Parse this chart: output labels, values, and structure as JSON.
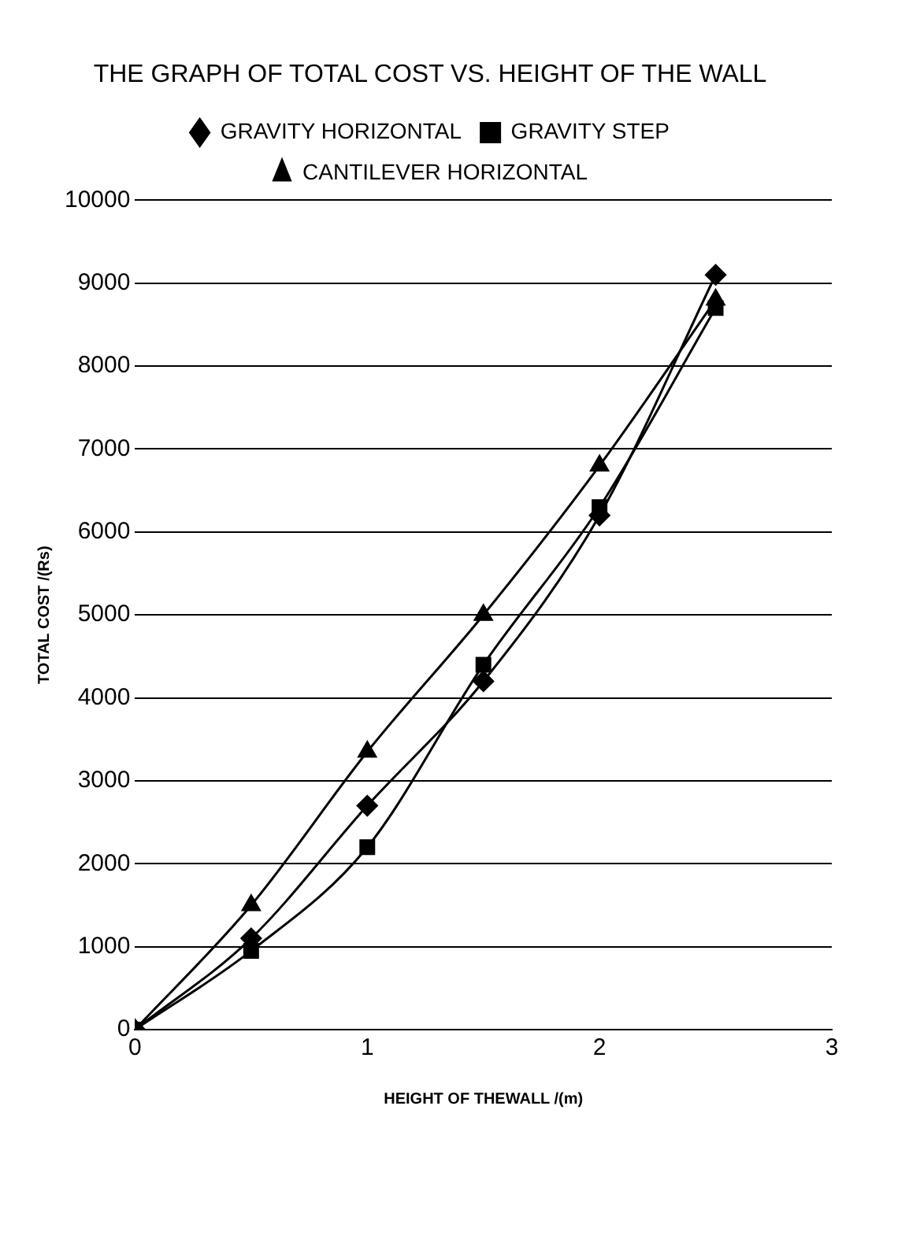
{
  "chart_data": {
    "type": "line",
    "title": "THE GRAPH OF TOTAL COST VS. HEIGHT OF THE WALL",
    "xlabel": "HEIGHT OF THEWALL /(m)",
    "ylabel": "TOTAL COST /(Rs)",
    "x": [
      0,
      0.5,
      1,
      1.5,
      2,
      2.5
    ],
    "series": [
      {
        "name": "GRAVITY HORIZONTAL",
        "color": "#000000",
        "marker": "diamond",
        "values": [
          0,
          1100,
          2700,
          4200,
          6200,
          9100
        ]
      },
      {
        "name": "GRAVITY STEP",
        "color": "#000000",
        "marker": "square",
        "values": [
          0,
          950,
          2200,
          4400,
          6300,
          8700
        ]
      },
      {
        "name": "CANTILEVER HORIZONTAL",
        "color": "#000000",
        "marker": "triangle",
        "values": [
          0,
          1500,
          3350,
          5000,
          6800,
          8800
        ]
      }
    ],
    "xlim": [
      0,
      3
    ],
    "xticks": [
      0,
      1,
      2,
      3
    ],
    "ylim": [
      0,
      10000
    ],
    "yticks": [
      0,
      1000,
      2000,
      3000,
      4000,
      5000,
      6000,
      7000,
      8000,
      9000,
      10000
    ],
    "grid": "y",
    "legend": "top",
    "line_style": "solid"
  }
}
